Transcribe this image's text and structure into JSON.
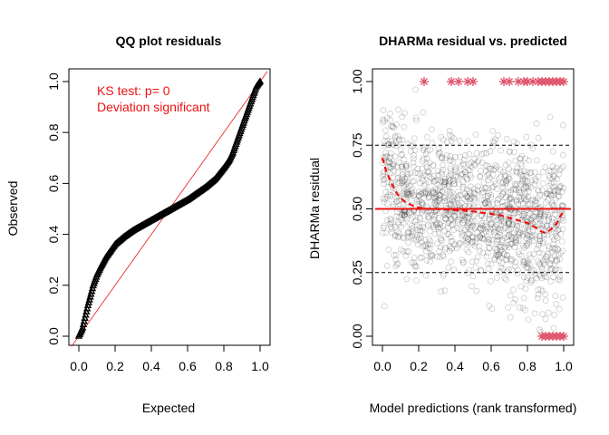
{
  "chart_data": [
    {
      "type": "scatter",
      "title": "QQ plot residuals",
      "xlabel": "Expected",
      "ylabel": "Observed",
      "xlim": [
        0,
        1
      ],
      "ylim": [
        0,
        1
      ],
      "x_ticks": [
        "0.0",
        "0.2",
        "0.4",
        "0.6",
        "0.8",
        "1.0"
      ],
      "y_ticks": [
        "0.0",
        "0.2",
        "0.4",
        "0.6",
        "0.8",
        "1.0"
      ],
      "annotations": [
        "KS test: p= 0",
        "Deviation  significant"
      ],
      "annotation_color": "#ee1111",
      "reference_line": {
        "from": [
          0,
          0
        ],
        "to": [
          1,
          1
        ],
        "color": "#ee1111"
      },
      "series": [
        {
          "marker_color": "#000000",
          "x": [
            0.0,
            0.02,
            0.05,
            0.08,
            0.1,
            0.12,
            0.15,
            0.18,
            0.2,
            0.25,
            0.3,
            0.35,
            0.4,
            0.45,
            0.5,
            0.55,
            0.6,
            0.65,
            0.7,
            0.75,
            0.8,
            0.83,
            0.85,
            0.88,
            0.9,
            0.92,
            0.94,
            0.96,
            0.98,
            1.0
          ],
          "y": [
            0.0,
            0.03,
            0.12,
            0.2,
            0.24,
            0.27,
            0.31,
            0.34,
            0.36,
            0.39,
            0.415,
            0.435,
            0.455,
            0.475,
            0.495,
            0.515,
            0.535,
            0.56,
            0.585,
            0.615,
            0.66,
            0.69,
            0.72,
            0.78,
            0.82,
            0.86,
            0.9,
            0.94,
            0.98,
            1.0
          ]
        }
      ]
    },
    {
      "type": "scatter",
      "title": "DHARMa residual vs. predicted",
      "xlabel": "Model predictions (rank transformed)",
      "ylabel": "DHARMa residual",
      "xlim": [
        0,
        1
      ],
      "ylim": [
        0,
        1
      ],
      "x_ticks": [
        "0.0",
        "0.2",
        "0.4",
        "0.6",
        "0.8",
        "1.0"
      ],
      "y_ticks": [
        "0.00",
        "0.25",
        "0.50",
        "0.75",
        "1.00"
      ],
      "hlines": [
        {
          "y": 0.25,
          "style": "dashed",
          "color": "#000000"
        },
        {
          "y": 0.5,
          "style": "solid",
          "color": "#ee1111"
        },
        {
          "y": 0.75,
          "style": "dashed",
          "color": "#000000"
        }
      ],
      "outlier_color": "#df536b",
      "outliers_top_x": [
        0.23,
        0.38,
        0.42,
        0.47,
        0.5,
        0.67,
        0.7,
        0.75,
        0.78,
        0.8,
        0.83,
        0.86,
        0.88,
        0.9,
        0.92,
        0.94,
        0.96,
        0.98,
        1.0
      ],
      "outliers_bottom_x": [
        0.88,
        0.9,
        0.92,
        0.94,
        0.96,
        0.98,
        1.0
      ],
      "quantile_spline": {
        "color": "#ee1111",
        "x": [
          0.0,
          0.02,
          0.05,
          0.08,
          0.12,
          0.16,
          0.2,
          0.25,
          0.3,
          0.35,
          0.4,
          0.45,
          0.5,
          0.55,
          0.6,
          0.65,
          0.7,
          0.75,
          0.8,
          0.85,
          0.88,
          0.9,
          0.93,
          0.96,
          0.98,
          1.0
        ],
        "y": [
          0.7,
          0.65,
          0.6,
          0.56,
          0.53,
          0.515,
          0.505,
          0.5,
          0.5,
          0.498,
          0.495,
          0.493,
          0.49,
          0.485,
          0.48,
          0.475,
          0.465,
          0.455,
          0.445,
          0.425,
          0.41,
          0.405,
          0.42,
          0.44,
          0.47,
          0.49
        ]
      }
    }
  ]
}
